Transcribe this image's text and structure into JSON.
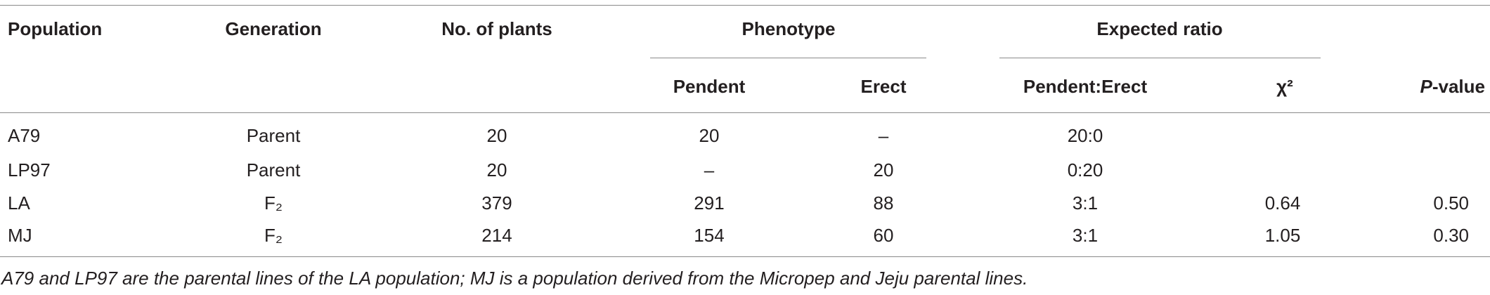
{
  "table": {
    "header": [
      "Population",
      "Generation",
      "No. of plants",
      "Phenotype",
      "Expected ratio"
    ],
    "subheader": [
      "Pendent",
      "Erect",
      "Pendent:Erect",
      "χ²",
      {
        "italic": "P",
        "text": "-value"
      }
    ],
    "rows": [
      [
        "A79",
        "Parent",
        "20",
        "20",
        "–",
        "20:0",
        null,
        null
      ],
      [
        "LP97",
        "Parent",
        "20",
        "–",
        "20",
        "0:20",
        null,
        null
      ],
      [
        "LA",
        "F₂",
        "379",
        "291",
        "88",
        "3:1",
        "0.64",
        "0.50"
      ],
      [
        "MJ",
        "F₂",
        "214",
        "154",
        "60",
        "3:1",
        "1.05",
        "0.30"
      ]
    ],
    "footnote": "A79 and LP97 are the parental lines of the LA population; MJ is a population derived from the Micropep and Jeju parental lines."
  }
}
